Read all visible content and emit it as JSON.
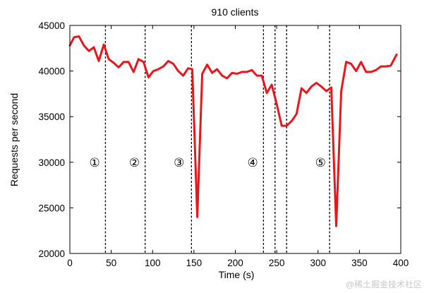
{
  "chart_data": {
    "type": "line",
    "title": "910 clients",
    "xlabel": "Time (s)",
    "ylabel": "Requests per second",
    "xlim": [
      0,
      400
    ],
    "ylim": [
      20000,
      45000
    ],
    "xticks": [
      0,
      50,
      100,
      150,
      200,
      250,
      300,
      350,
      400
    ],
    "yticks": [
      20000,
      25000,
      30000,
      35000,
      40000,
      45000
    ],
    "grid": false,
    "line_color": "#e8151b",
    "series": [
      {
        "x": [
          0,
          5,
          11,
          17,
          23,
          29,
          35,
          41,
          47,
          53,
          59,
          65,
          71,
          77,
          83,
          89,
          95,
          101,
          107,
          113,
          119,
          125,
          131,
          137,
          143,
          148,
          154,
          160,
          166,
          172,
          178,
          184,
          190,
          196,
          202,
          208,
          214,
          220,
          226,
          232,
          238,
          244,
          250,
          256,
          262,
          268,
          274,
          280,
          286,
          292,
          298,
          304,
          310,
          316,
          322,
          328,
          334,
          340,
          346,
          352,
          358,
          364,
          370,
          376,
          382,
          388,
          395
        ],
        "values": [
          42800,
          43700,
          43800,
          42800,
          42200,
          42600,
          41100,
          42900,
          41300,
          40900,
          40400,
          41000,
          41000,
          39900,
          41300,
          41000,
          39300,
          40000,
          40200,
          40500,
          41100,
          40800,
          40000,
          39500,
          40300,
          40200,
          24000,
          39700,
          40700,
          39800,
          40200,
          39500,
          39200,
          39800,
          39700,
          39900,
          39900,
          40100,
          39500,
          39500,
          37600,
          38500,
          36400,
          34000,
          34000,
          34500,
          35300,
          38100,
          37600,
          38300,
          38700,
          38300,
          37800,
          38200,
          23000,
          37800,
          41000,
          40800,
          40000,
          41000,
          39900,
          39900,
          40100,
          40500,
          40500,
          40600,
          41800
        ]
      }
    ],
    "vertical_markers": [
      43,
      91,
      147,
      234,
      248,
      262,
      314
    ],
    "annotations": [
      {
        "x": 30,
        "y": 30000,
        "text": "①"
      },
      {
        "x": 78,
        "y": 30000,
        "text": "②"
      },
      {
        "x": 132,
        "y": 30000,
        "text": "③"
      },
      {
        "x": 221,
        "y": 30000,
        "text": "④"
      },
      {
        "x": 303,
        "y": 30000,
        "text": "⑤"
      }
    ]
  },
  "watermark": "@稀土掘金技术社区"
}
